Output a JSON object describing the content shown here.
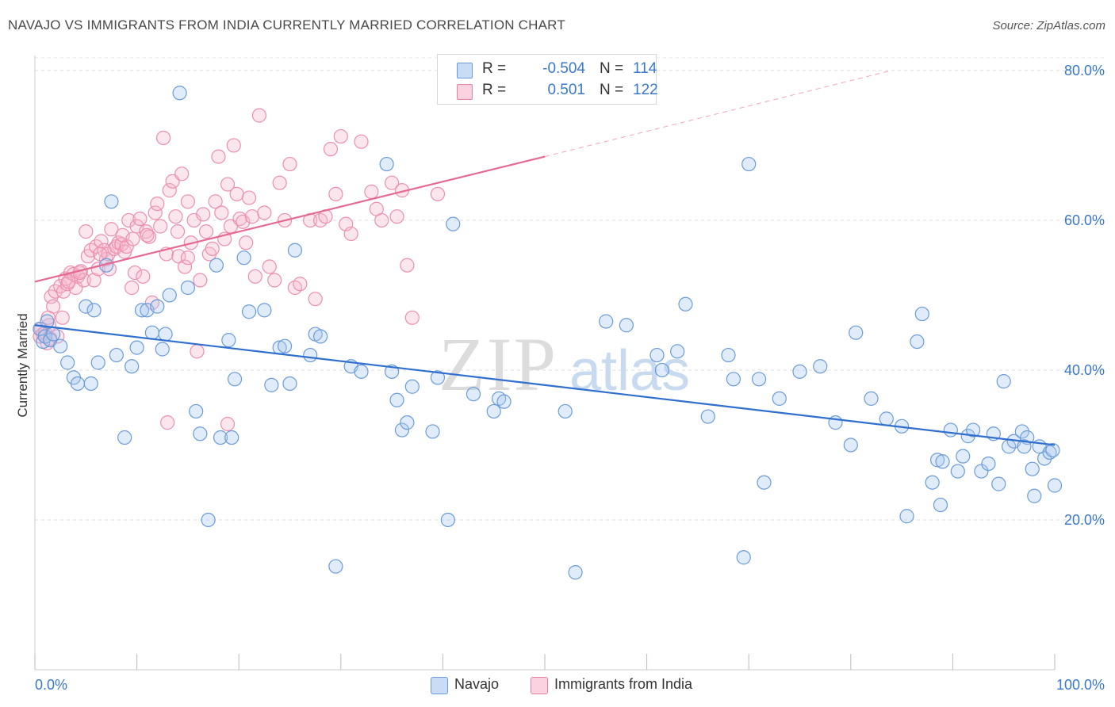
{
  "header": {
    "title": "NAVAJO VS IMMIGRANTS FROM INDIA CURRENTLY MARRIED CORRELATION CHART",
    "source": "Source: ZipAtlas.com"
  },
  "watermark": {
    "zip": "ZIP",
    "atlas": "atlas"
  },
  "legend": {
    "rows": [
      {
        "r_label": "R =",
        "r_value": "-0.504",
        "n_label": "N =",
        "n_value": "114",
        "color": "#a9c8f0",
        "border": "#6b9bd8"
      },
      {
        "r_label": "R =",
        "r_value": "0.501",
        "n_label": "N =",
        "n_value": "122",
        "color": "#f6b8cb",
        "border": "#e67fa0"
      }
    ]
  },
  "bottom_legend": {
    "navajo": "Navajo",
    "india": "Immigrants from India"
  },
  "chart_data": {
    "type": "scatter",
    "title": "NAVAJO VS IMMIGRANTS FROM INDIA CURRENTLY MARRIED CORRELATION CHART",
    "xlabel": "",
    "ylabel": "Currently Married",
    "xlim": [
      0,
      100
    ],
    "ylim": [
      0,
      82
    ],
    "x_tick_labels": [
      "0.0%",
      "100.0%"
    ],
    "y_ticks": [
      20,
      40,
      60,
      80
    ],
    "y_tick_labels": [
      "20.0%",
      "40.0%",
      "60.0%",
      "80.0%"
    ],
    "grid": "horizontal dashed",
    "legend_position": "top-center",
    "colors": {
      "navajo": "#6b9bd8",
      "navajo_line": "#2f6fcf",
      "india": "#ec8fae",
      "india_line": "#e46a93"
    },
    "series": [
      {
        "name": "Navajo",
        "trend": {
          "x0": 0,
          "y0": 46.0,
          "x1": 100,
          "y1": 30.0
        },
        "points": [
          [
            0.5,
            45.5
          ],
          [
            0.8,
            43.8
          ],
          [
            1.0,
            44.5
          ],
          [
            1.2,
            46.5
          ],
          [
            1.5,
            44.0
          ],
          [
            1.8,
            44.8
          ],
          [
            2.5,
            43.2
          ],
          [
            3.2,
            41.0
          ],
          [
            3.8,
            39.0
          ],
          [
            4.2,
            38.2
          ],
          [
            5.0,
            48.5
          ],
          [
            5.5,
            38.2
          ],
          [
            5.8,
            48.0
          ],
          [
            6.2,
            41.0
          ],
          [
            7.0,
            54.0
          ],
          [
            7.5,
            62.5
          ],
          [
            8.0,
            42.0
          ],
          [
            8.8,
            31.0
          ],
          [
            9.5,
            40.5
          ],
          [
            10.0,
            43.0
          ],
          [
            10.5,
            48.0
          ],
          [
            11.0,
            48.0
          ],
          [
            11.5,
            45.0
          ],
          [
            12.0,
            48.5
          ],
          [
            12.5,
            42.8
          ],
          [
            12.8,
            44.8
          ],
          [
            13.2,
            50.0
          ],
          [
            14.2,
            77.0
          ],
          [
            15.0,
            51.0
          ],
          [
            15.8,
            34.5
          ],
          [
            16.2,
            31.5
          ],
          [
            17.0,
            20.0
          ],
          [
            17.8,
            54.0
          ],
          [
            18.2,
            31.0
          ],
          [
            19.0,
            44.0
          ],
          [
            19.3,
            31.0
          ],
          [
            19.6,
            38.8
          ],
          [
            20.5,
            55.0
          ],
          [
            21.0,
            47.8
          ],
          [
            22.5,
            48.0
          ],
          [
            23.2,
            38.0
          ],
          [
            24.0,
            43.0
          ],
          [
            24.5,
            43.2
          ],
          [
            25.0,
            38.2
          ],
          [
            25.5,
            56.0
          ],
          [
            27.0,
            42.0
          ],
          [
            27.5,
            44.8
          ],
          [
            28.0,
            44.5
          ],
          [
            29.5,
            13.8
          ],
          [
            31.0,
            40.5
          ],
          [
            32.0,
            39.8
          ],
          [
            34.5,
            67.5
          ],
          [
            35.0,
            39.8
          ],
          [
            35.5,
            36.0
          ],
          [
            36.0,
            32.0
          ],
          [
            36.5,
            33.0
          ],
          [
            37.0,
            37.8
          ],
          [
            39.0,
            31.8
          ],
          [
            39.5,
            39.0
          ],
          [
            40.5,
            20.0
          ],
          [
            41.0,
            59.5
          ],
          [
            43.0,
            36.8
          ],
          [
            45.0,
            34.5
          ],
          [
            45.5,
            36.2
          ],
          [
            46.0,
            35.8
          ],
          [
            52.0,
            34.5
          ],
          [
            53.0,
            13.0
          ],
          [
            56.0,
            46.5
          ],
          [
            58.0,
            46.0
          ],
          [
            61.0,
            42.0
          ],
          [
            61.5,
            40.0
          ],
          [
            63.0,
            42.5
          ],
          [
            63.8,
            48.8
          ],
          [
            66.0,
            33.8
          ],
          [
            68.0,
            42.0
          ],
          [
            68.5,
            38.8
          ],
          [
            69.5,
            15.0
          ],
          [
            70.0,
            67.5
          ],
          [
            71.0,
            38.8
          ],
          [
            71.5,
            25.0
          ],
          [
            73.0,
            36.2
          ],
          [
            75.0,
            39.8
          ],
          [
            77.0,
            40.5
          ],
          [
            78.5,
            33.0
          ],
          [
            80.0,
            30.0
          ],
          [
            80.5,
            45.0
          ],
          [
            82.0,
            36.2
          ],
          [
            83.5,
            33.5
          ],
          [
            85.0,
            32.5
          ],
          [
            85.5,
            20.5
          ],
          [
            86.5,
            43.8
          ],
          [
            87.0,
            47.5
          ],
          [
            88.0,
            25.0
          ],
          [
            88.5,
            28.0
          ],
          [
            89.0,
            27.8
          ],
          [
            89.8,
            32.0
          ],
          [
            90.5,
            26.5
          ],
          [
            91.0,
            28.5
          ],
          [
            91.5,
            31.2
          ],
          [
            92.0,
            32.0
          ],
          [
            92.8,
            26.5
          ],
          [
            93.5,
            27.5
          ],
          [
            94.0,
            31.5
          ],
          [
            94.5,
            24.8
          ],
          [
            95.0,
            38.5
          ],
          [
            95.5,
            29.8
          ],
          [
            96.0,
            30.5
          ],
          [
            96.8,
            31.8
          ],
          [
            97.3,
            31.0
          ],
          [
            97.8,
            26.8
          ],
          [
            98.0,
            23.2
          ],
          [
            98.5,
            29.8
          ],
          [
            99.0,
            28.2
          ],
          [
            99.5,
            29.0
          ],
          [
            100.0,
            24.6
          ],
          [
            99.8,
            29.3
          ],
          [
            97.0,
            29.8
          ],
          [
            88.8,
            22.0
          ]
        ]
      },
      {
        "name": "Immigrants from India",
        "trend": {
          "x0": 0,
          "y0": 51.8,
          "x1": 50,
          "y1": 68.5,
          "dash_x1": 84,
          "dash_y1": 80
        },
        "points": [
          [
            0.5,
            44.5
          ],
          [
            0.6,
            45.5
          ],
          [
            0.8,
            44.8
          ],
          [
            1.0,
            45.0
          ],
          [
            1.2,
            43.6
          ],
          [
            1.4,
            46.0
          ],
          [
            1.6,
            49.8
          ],
          [
            1.8,
            48.5
          ],
          [
            2.0,
            50.5
          ],
          [
            2.2,
            44.5
          ],
          [
            2.5,
            51.2
          ],
          [
            2.8,
            50.5
          ],
          [
            3.0,
            52.2
          ],
          [
            3.2,
            51.5
          ],
          [
            3.5,
            53.0
          ],
          [
            3.8,
            52.8
          ],
          [
            4.0,
            51.0
          ],
          [
            4.2,
            52.5
          ],
          [
            4.5,
            53.2
          ],
          [
            4.8,
            52.0
          ],
          [
            5.0,
            58.5
          ],
          [
            5.2,
            55.2
          ],
          [
            5.5,
            56.0
          ],
          [
            5.8,
            52.0
          ],
          [
            6.0,
            56.5
          ],
          [
            6.2,
            53.5
          ],
          [
            6.5,
            57.2
          ],
          [
            6.8,
            56.0
          ],
          [
            7.0,
            54.8
          ],
          [
            7.2,
            55.5
          ],
          [
            7.5,
            58.8
          ],
          [
            7.8,
            56.2
          ],
          [
            8.0,
            56.5
          ],
          [
            8.2,
            57.0
          ],
          [
            8.5,
            56.8
          ],
          [
            8.8,
            55.8
          ],
          [
            9.0,
            56.5
          ],
          [
            9.2,
            60.0
          ],
          [
            9.5,
            51.0
          ],
          [
            9.8,
            53.0
          ],
          [
            10.0,
            59.2
          ],
          [
            10.3,
            60.2
          ],
          [
            10.6,
            52.5
          ],
          [
            10.9,
            58.5
          ],
          [
            11.2,
            57.8
          ],
          [
            11.5,
            49.0
          ],
          [
            11.8,
            61.0
          ],
          [
            12.0,
            62.2
          ],
          [
            12.3,
            59.2
          ],
          [
            12.6,
            71.0
          ],
          [
            12.9,
            55.5
          ],
          [
            13.2,
            64.0
          ],
          [
            13.5,
            65.2
          ],
          [
            13.8,
            60.5
          ],
          [
            14.1,
            55.2
          ],
          [
            14.4,
            66.2
          ],
          [
            14.7,
            53.8
          ],
          [
            15.0,
            62.5
          ],
          [
            15.3,
            57.0
          ],
          [
            15.6,
            60.0
          ],
          [
            15.9,
            42.5
          ],
          [
            16.2,
            52.0
          ],
          [
            16.5,
            60.8
          ],
          [
            16.8,
            58.5
          ],
          [
            17.1,
            55.5
          ],
          [
            17.4,
            56.2
          ],
          [
            17.7,
            62.5
          ],
          [
            18.0,
            68.5
          ],
          [
            18.3,
            61.0
          ],
          [
            18.6,
            57.5
          ],
          [
            18.9,
            64.8
          ],
          [
            19.2,
            59.2
          ],
          [
            19.5,
            70.0
          ],
          [
            19.8,
            63.5
          ],
          [
            20.1,
            60.2
          ],
          [
            20.4,
            59.8
          ],
          [
            20.7,
            57.0
          ],
          [
            21.0,
            63.0
          ],
          [
            21.3,
            60.5
          ],
          [
            21.6,
            52.5
          ],
          [
            22.0,
            74.0
          ],
          [
            22.5,
            61.0
          ],
          [
            23.0,
            53.8
          ],
          [
            23.5,
            52.0
          ],
          [
            24.0,
            65.0
          ],
          [
            24.5,
            60.0
          ],
          [
            25.0,
            67.5
          ],
          [
            25.5,
            51.0
          ],
          [
            26.0,
            51.5
          ],
          [
            27.0,
            60.0
          ],
          [
            27.5,
            49.5
          ],
          [
            28.0,
            60.0
          ],
          [
            28.5,
            60.5
          ],
          [
            29.0,
            69.5
          ],
          [
            29.5,
            63.5
          ],
          [
            30.0,
            71.2
          ],
          [
            30.5,
            59.5
          ],
          [
            31.0,
            58.2
          ],
          [
            32.0,
            70.5
          ],
          [
            33.0,
            63.8
          ],
          [
            33.5,
            61.5
          ],
          [
            34.0,
            60.0
          ],
          [
            35.0,
            65.0
          ],
          [
            35.5,
            60.5
          ],
          [
            36.0,
            64.0
          ],
          [
            36.5,
            54.0
          ],
          [
            37.0,
            47.0
          ],
          [
            39.5,
            63.5
          ],
          [
            13.0,
            33.0
          ],
          [
            18.9,
            32.8
          ],
          [
            1.3,
            47.0
          ],
          [
            1.5,
            44.2
          ],
          [
            2.7,
            47.0
          ],
          [
            3.3,
            51.8
          ],
          [
            4.4,
            53.0
          ],
          [
            6.4,
            55.5
          ],
          [
            7.3,
            53.5
          ],
          [
            8.6,
            58.0
          ],
          [
            9.6,
            57.5
          ],
          [
            11.0,
            58.0
          ],
          [
            14.0,
            58.5
          ],
          [
            15.0,
            55.0
          ]
        ]
      }
    ]
  }
}
